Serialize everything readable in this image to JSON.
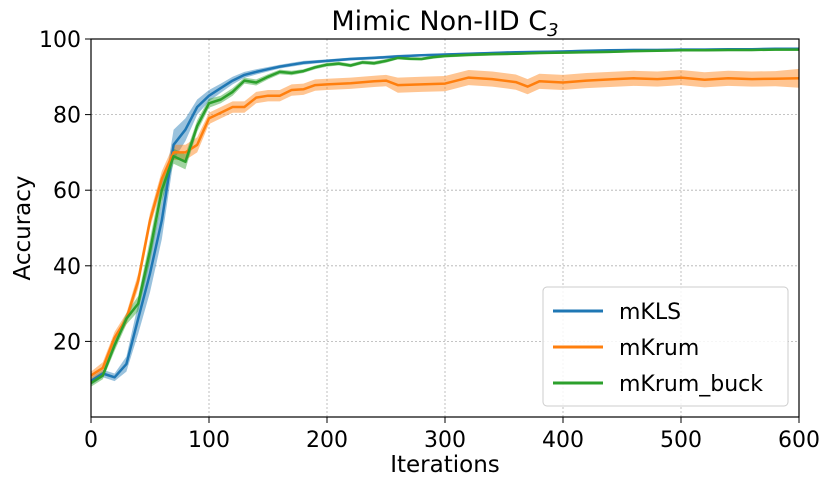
{
  "chart_data": {
    "type": "line",
    "title": "Mimic Non-IID C",
    "title_subscript": "3",
    "xlabel": "Iterations",
    "ylabel": "Accuracy",
    "xlim": [
      0,
      600
    ],
    "ylim": [
      0,
      100
    ],
    "xticks": [
      0,
      100,
      200,
      300,
      400,
      500,
      600
    ],
    "yticks": [
      20,
      40,
      60,
      80,
      100
    ],
    "grid": true,
    "legend_position": "bottom-right",
    "series": [
      {
        "name": "mKLS",
        "color": "#1f77b4",
        "x": [
          0,
          10,
          20,
          30,
          40,
          50,
          60,
          70,
          80,
          90,
          100,
          110,
          120,
          130,
          140,
          150,
          160,
          170,
          180,
          200,
          220,
          240,
          260,
          280,
          300,
          320,
          340,
          360,
          380,
          400,
          420,
          440,
          460,
          480,
          500,
          520,
          540,
          560,
          580,
          600
        ],
        "y": [
          9.5,
          11.5,
          10.5,
          14,
          26,
          38,
          52,
          72,
          76,
          82,
          85,
          87,
          89,
          90.5,
          91.3,
          92,
          92.7,
          93.2,
          93.7,
          94.2,
          94.7,
          95,
          95.4,
          95.7,
          95.9,
          96.1,
          96.3,
          96.5,
          96.6,
          96.7,
          96.9,
          97,
          97.1,
          97.1,
          97.2,
          97.2,
          97.3,
          97.3,
          97.4,
          97.4
        ],
        "band": [
          1,
          1,
          1,
          2,
          4,
          5,
          5,
          4,
          3,
          2,
          1.5,
          1.2,
          1,
          0.8,
          0.7,
          0.6,
          0.5,
          0.5,
          0.5,
          0.4,
          0.4,
          0.4,
          0.4,
          0.3,
          0.3,
          0.3,
          0.3,
          0.3,
          0.3,
          0.3,
          0.3,
          0.3,
          0.3,
          0.3,
          0.3,
          0.3,
          0.3,
          0.3,
          0.3,
          0.3
        ]
      },
      {
        "name": "mKrum",
        "color": "#ff7f0e",
        "x": [
          0,
          10,
          20,
          30,
          40,
          50,
          60,
          70,
          80,
          90,
          100,
          110,
          120,
          130,
          140,
          150,
          160,
          170,
          180,
          190,
          200,
          220,
          240,
          250,
          260,
          280,
          300,
          320,
          340,
          360,
          370,
          380,
          400,
          420,
          440,
          460,
          480,
          500,
          520,
          540,
          560,
          580,
          600
        ],
        "y": [
          11,
          13,
          21,
          26,
          36,
          52,
          63,
          70,
          70,
          72,
          79,
          80.5,
          82,
          82,
          84.5,
          85,
          85,
          86.5,
          86.7,
          87.8,
          88,
          88.3,
          88.8,
          89,
          87.8,
          88,
          88.2,
          89.8,
          89.4,
          88.6,
          87.4,
          88.8,
          88.5,
          89,
          89.3,
          89.6,
          89.4,
          89.8,
          89.2,
          89.6,
          89.4,
          89.5,
          89.6
        ],
        "band": [
          1,
          1.5,
          1.5,
          1.5,
          2,
          2,
          2,
          2,
          2,
          2,
          1.5,
          1.5,
          1.5,
          1.5,
          1.5,
          1.5,
          1.5,
          1.5,
          1.5,
          1.5,
          1.5,
          1.5,
          1.5,
          1.5,
          2,
          2,
          2,
          2,
          2,
          2,
          2,
          2,
          2,
          2,
          2,
          2,
          2,
          2,
          2,
          2,
          2,
          2,
          2.5
        ]
      },
      {
        "name": "mKrum_buck",
        "color": "#2ca02c",
        "x": [
          0,
          10,
          20,
          30,
          40,
          50,
          60,
          70,
          80,
          90,
          100,
          110,
          120,
          130,
          140,
          150,
          160,
          170,
          180,
          190,
          200,
          210,
          220,
          230,
          240,
          250,
          260,
          270,
          280,
          290,
          300,
          320,
          340,
          360,
          380,
          400,
          420,
          440,
          460,
          480,
          500,
          520,
          540,
          560,
          580,
          600
        ],
        "y": [
          9,
          11,
          19,
          26,
          30,
          44,
          60,
          69,
          67.5,
          77,
          83,
          84,
          86,
          89,
          88.5,
          90,
          91.3,
          91,
          91.5,
          92.5,
          93.2,
          93.5,
          93,
          93.8,
          93.6,
          94.2,
          95,
          94.8,
          94.7,
          95.2,
          95.5,
          95.8,
          96,
          96.1,
          96.3,
          96.4,
          96.5,
          96.6,
          96.8,
          96.9,
          97,
          97,
          97.1,
          97.1,
          97.2,
          97.2
        ],
        "band": [
          1,
          1,
          1.5,
          1.5,
          2,
          3,
          3,
          2,
          2,
          1.5,
          1.2,
          1,
          1,
          0.8,
          0.8,
          0.7,
          0.6,
          0.6,
          0.5,
          0.5,
          0.5,
          0.5,
          0.5,
          0.5,
          0.5,
          0.5,
          0.4,
          0.4,
          0.4,
          0.4,
          0.4,
          0.4,
          0.4,
          0.3,
          0.3,
          0.3,
          0.3,
          0.3,
          0.3,
          0.3,
          0.3,
          0.3,
          0.3,
          0.3,
          0.3,
          0.3
        ]
      }
    ]
  }
}
